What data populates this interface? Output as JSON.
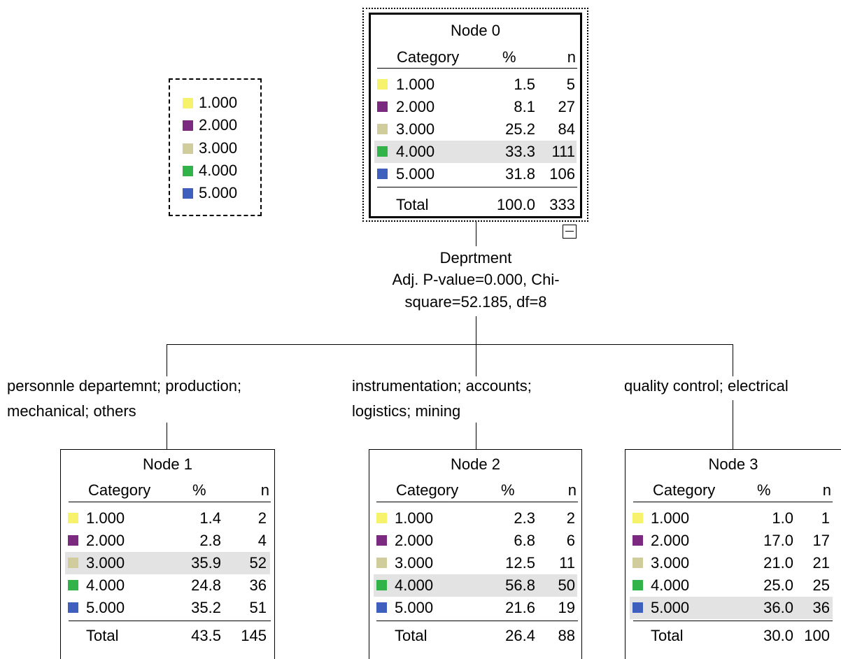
{
  "colors": {
    "1.000": "#f7f26b",
    "2.000": "#7b2a7f",
    "3.000": "#d0cc9c",
    "4.000": "#31b34a",
    "5.000": "#3f5fbf",
    "highlight": "#e3e3e3"
  },
  "legend": [
    {
      "label": "1.000",
      "color": "#f7f26b"
    },
    {
      "label": "2.000",
      "color": "#7b2a7f"
    },
    {
      "label": "3.000",
      "color": "#d0cc9c"
    },
    {
      "label": "4.000",
      "color": "#31b34a"
    },
    {
      "label": "5.000",
      "color": "#3f5fbf"
    }
  ],
  "headers": {
    "category": "Category",
    "pct": "%",
    "n": "n",
    "total": "Total"
  },
  "nodes": [
    {
      "title": "Node 0",
      "rows": [
        {
          "cat": "1.000",
          "pct": "1.5",
          "n": "5",
          "color": "#f7f26b"
        },
        {
          "cat": "2.000",
          "pct": "8.1",
          "n": "27",
          "color": "#7b2a7f"
        },
        {
          "cat": "3.000",
          "pct": "25.2",
          "n": "84",
          "color": "#d0cc9c"
        },
        {
          "cat": "4.000",
          "pct": "33.3",
          "n": "111",
          "color": "#31b34a",
          "highlight": true
        },
        {
          "cat": "5.000",
          "pct": "31.8",
          "n": "106",
          "color": "#3f5fbf"
        }
      ],
      "total": {
        "pct": "100.0",
        "n": "333"
      }
    },
    {
      "title": "Node 1",
      "rows": [
        {
          "cat": "1.000",
          "pct": "1.4",
          "n": "2",
          "color": "#f7f26b"
        },
        {
          "cat": "2.000",
          "pct": "2.8",
          "n": "4",
          "color": "#7b2a7f"
        },
        {
          "cat": "3.000",
          "pct": "35.9",
          "n": "52",
          "color": "#d0cc9c",
          "highlight": true
        },
        {
          "cat": "4.000",
          "pct": "24.8",
          "n": "36",
          "color": "#31b34a"
        },
        {
          "cat": "5.000",
          "pct": "35.2",
          "n": "51",
          "color": "#3f5fbf"
        }
      ],
      "total": {
        "pct": "43.5",
        "n": "145"
      }
    },
    {
      "title": "Node 2",
      "rows": [
        {
          "cat": "1.000",
          "pct": "2.3",
          "n": "2",
          "color": "#f7f26b"
        },
        {
          "cat": "2.000",
          "pct": "6.8",
          "n": "6",
          "color": "#7b2a7f"
        },
        {
          "cat": "3.000",
          "pct": "12.5",
          "n": "11",
          "color": "#d0cc9c"
        },
        {
          "cat": "4.000",
          "pct": "56.8",
          "n": "50",
          "color": "#31b34a",
          "highlight": true
        },
        {
          "cat": "5.000",
          "pct": "21.6",
          "n": "19",
          "color": "#3f5fbf"
        }
      ],
      "total": {
        "pct": "26.4",
        "n": "88"
      }
    },
    {
      "title": "Node 3",
      "rows": [
        {
          "cat": "1.000",
          "pct": "1.0",
          "n": "1",
          "color": "#f7f26b"
        },
        {
          "cat": "2.000",
          "pct": "17.0",
          "n": "17",
          "color": "#7b2a7f"
        },
        {
          "cat": "3.000",
          "pct": "21.0",
          "n": "21",
          "color": "#d0cc9c"
        },
        {
          "cat": "4.000",
          "pct": "25.0",
          "n": "25",
          "color": "#31b34a"
        },
        {
          "cat": "5.000",
          "pct": "36.0",
          "n": "36",
          "color": "#3f5fbf",
          "highlight": true
        }
      ],
      "total": {
        "pct": "30.0",
        "n": "100"
      }
    }
  ],
  "split": {
    "line1": "Deprtment",
    "line2": "Adj. P-value=0.000, Chi-",
    "line3": "square=52.185, df=8"
  },
  "branches": [
    {
      "line1": "personnle departemnt; production;",
      "line2": "mechanical; others"
    },
    {
      "line1": "instrumentation; accounts;",
      "line2": "logistics; mining"
    },
    {
      "line1": "quality control; electrical",
      "line2": ""
    }
  ]
}
